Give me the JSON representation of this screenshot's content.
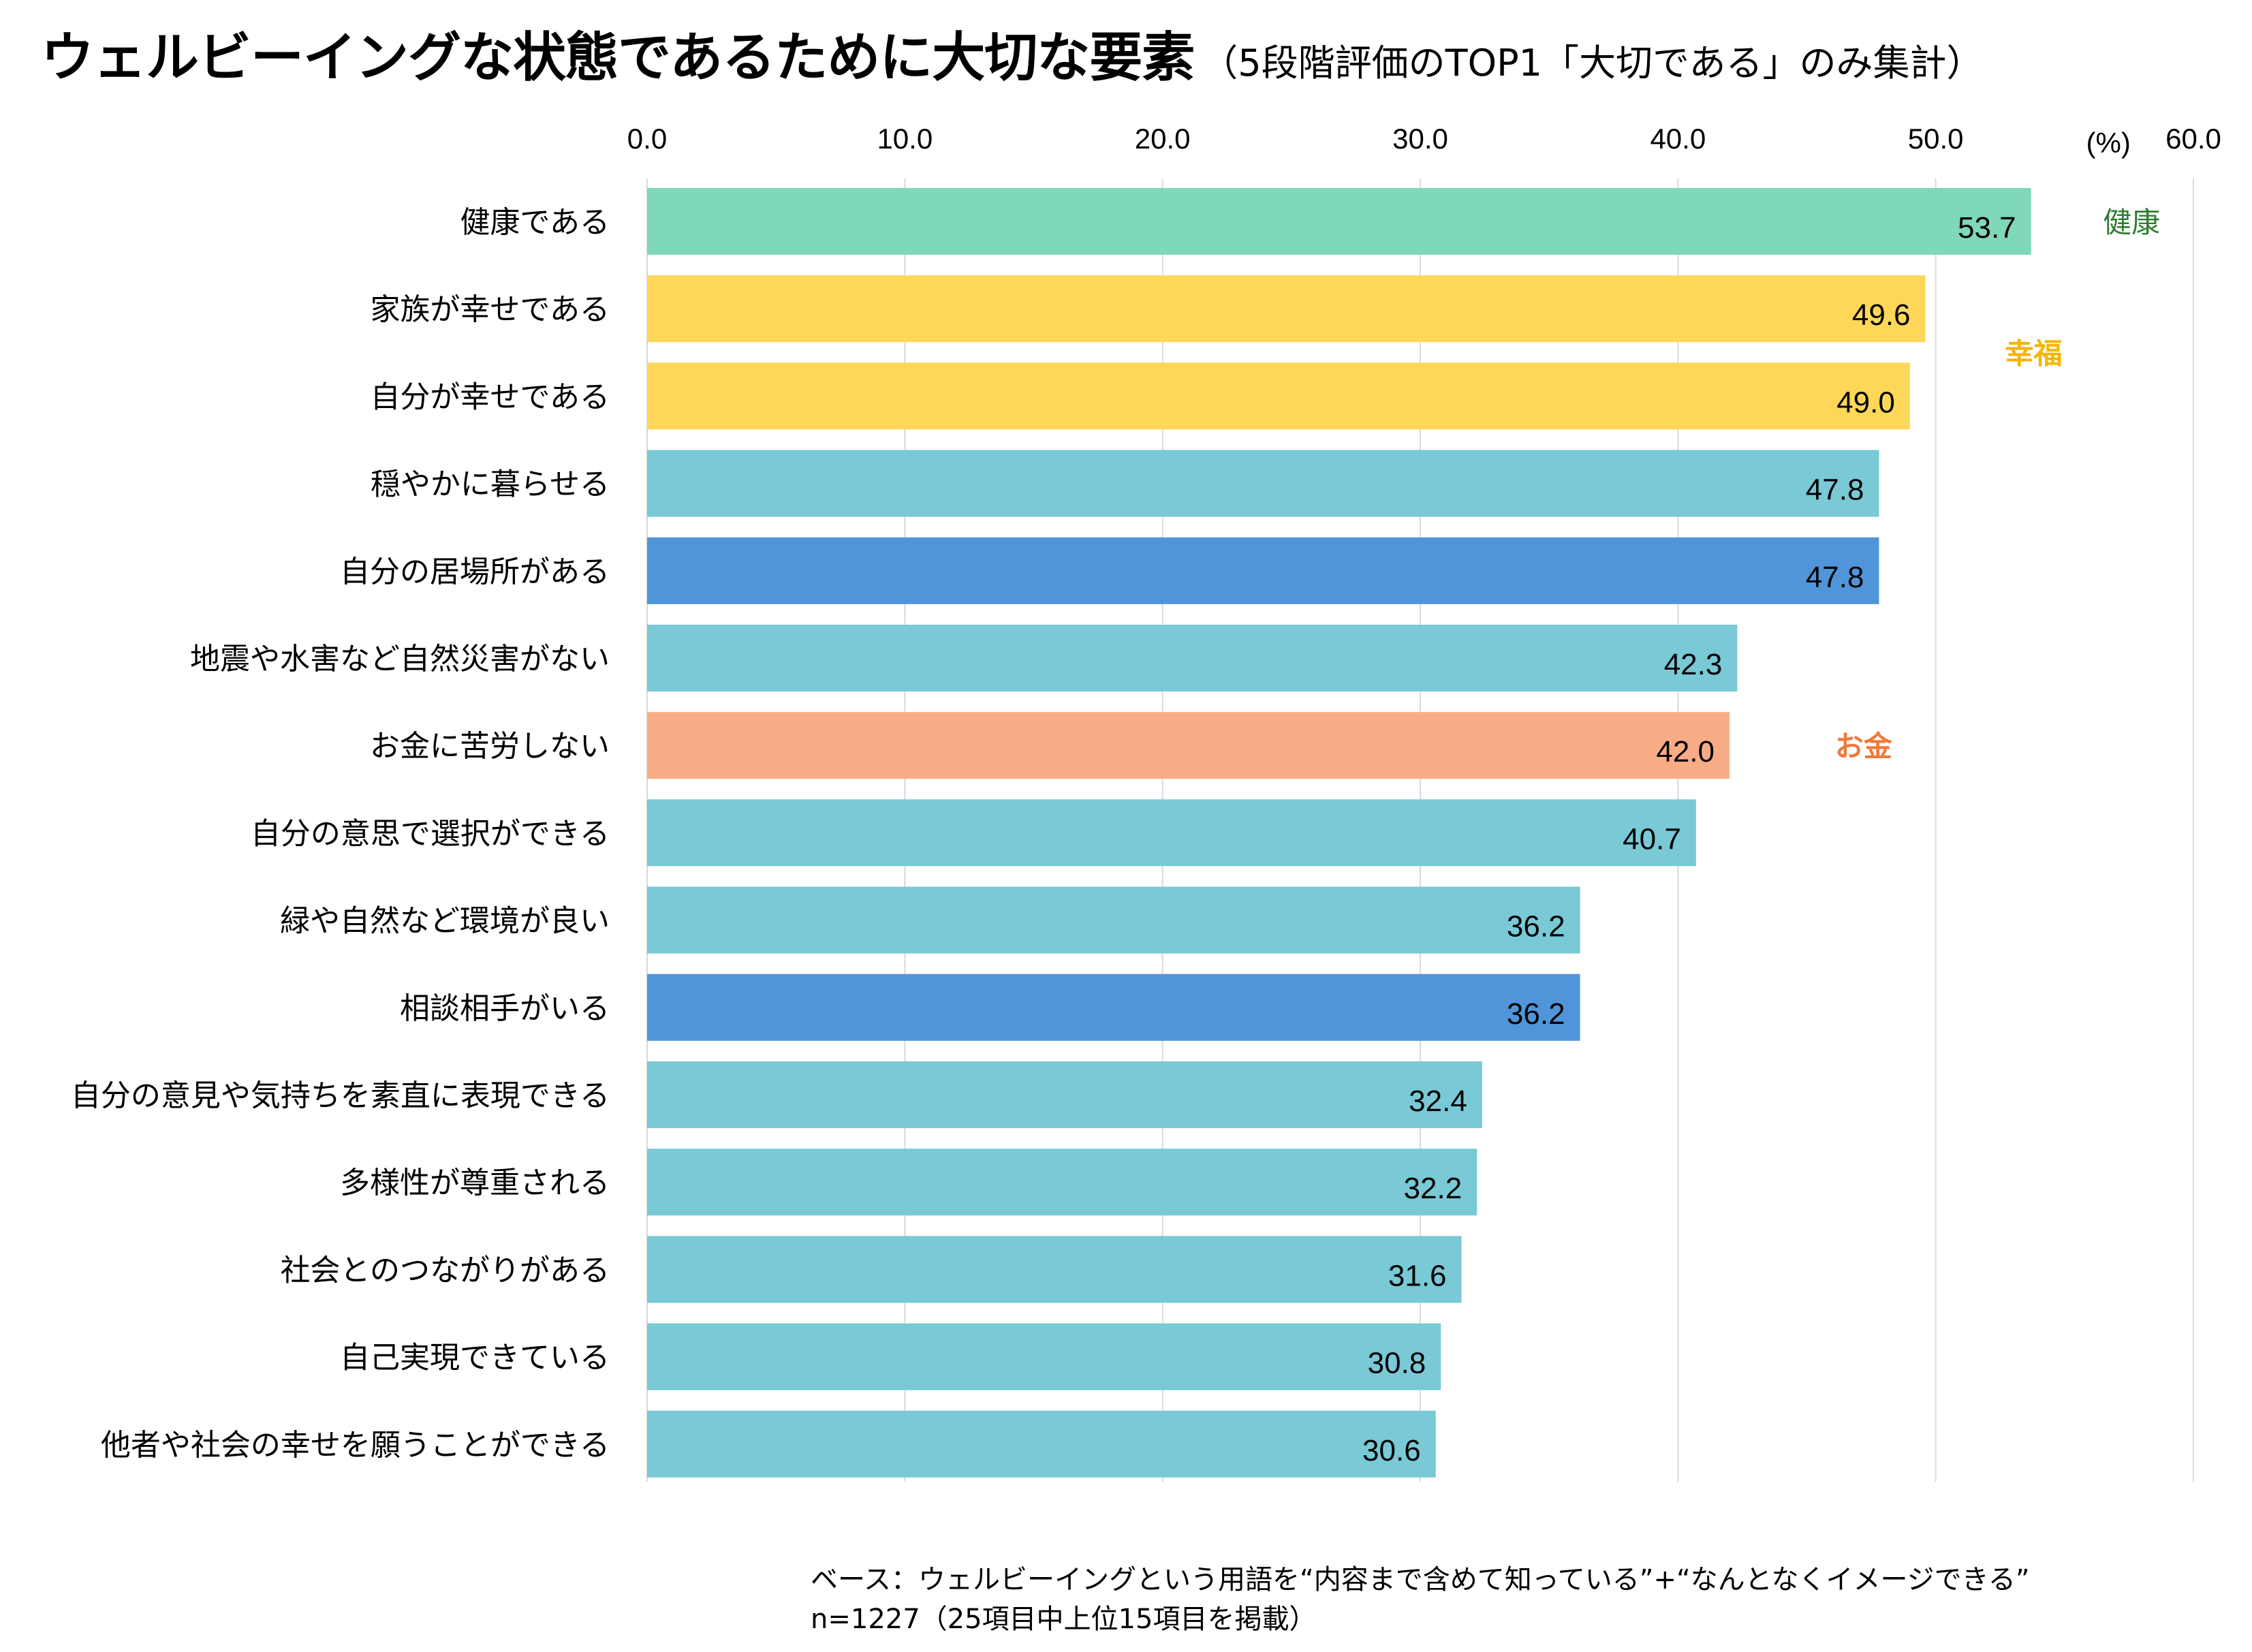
{
  "chart_data": {
    "type": "bar",
    "orientation": "horizontal",
    "title": "ウェルビーイングな状態であるために大切な要素",
    "subtitle": "（5段階評価のTOP1「大切である」のみ集計）",
    "unit_label": "(%)",
    "xlim": [
      0,
      60
    ],
    "ticks": [
      "0.0",
      "10.0",
      "20.0",
      "30.0",
      "40.0",
      "50.0",
      "60.0"
    ],
    "grid": true,
    "categories": [
      "健康である",
      "家族が幸せである",
      "自分が幸せである",
      "穏やかに暮らせる",
      "自分の居場所がある",
      "地震や水害など自然災害がない",
      "お金に苦労しない",
      "自分の意思で選択ができる",
      "緑や自然など環境が良い",
      "相談相手がいる",
      "自分の意見や気持ちを素直に表現できる",
      "多様性が尊重される",
      "社会とのつながりがある",
      "自己実現できている",
      "他者や社会の幸せを願うことができる"
    ],
    "values": [
      53.7,
      49.6,
      49.0,
      47.8,
      47.8,
      42.3,
      42.0,
      40.7,
      36.2,
      36.2,
      32.4,
      32.2,
      31.6,
      30.8,
      30.6
    ],
    "value_labels": [
      "53.7",
      "49.6",
      "49.0",
      "47.8",
      "47.8",
      "42.3",
      "42.0",
      "40.7",
      "36.2",
      "36.2",
      "32.4",
      "32.2",
      "31.6",
      "30.8",
      "30.6"
    ],
    "bar_colors": [
      "#7fd8b8",
      "#fed758",
      "#fed758",
      "#79c9d6",
      "#5095d9",
      "#79c9d6",
      "#f8ac85",
      "#79c9d6",
      "#79c9d6",
      "#5095d9",
      "#79c9d6",
      "#79c9d6",
      "#79c9d6",
      "#79c9d6",
      "#79c9d6"
    ],
    "annotations": [
      {
        "text": "健康",
        "row": 0,
        "value": 57.6,
        "color": "#2e7d32",
        "bold": false
      },
      {
        "text": "幸福",
        "row": 1.5,
        "value": 53.8,
        "color": "#f5b400",
        "bold": true
      },
      {
        "text": "お金",
        "row": 6,
        "value": 47.2,
        "color": "#ee7a3a",
        "bold": true
      }
    ]
  },
  "footnote": {
    "line1": "ベース：ウェルビーイングという用語を“内容まで含めて知っている”+“なんとなくイメージできる”",
    "line2": "n=1227（25項目中上位15項目を掲載）"
  }
}
